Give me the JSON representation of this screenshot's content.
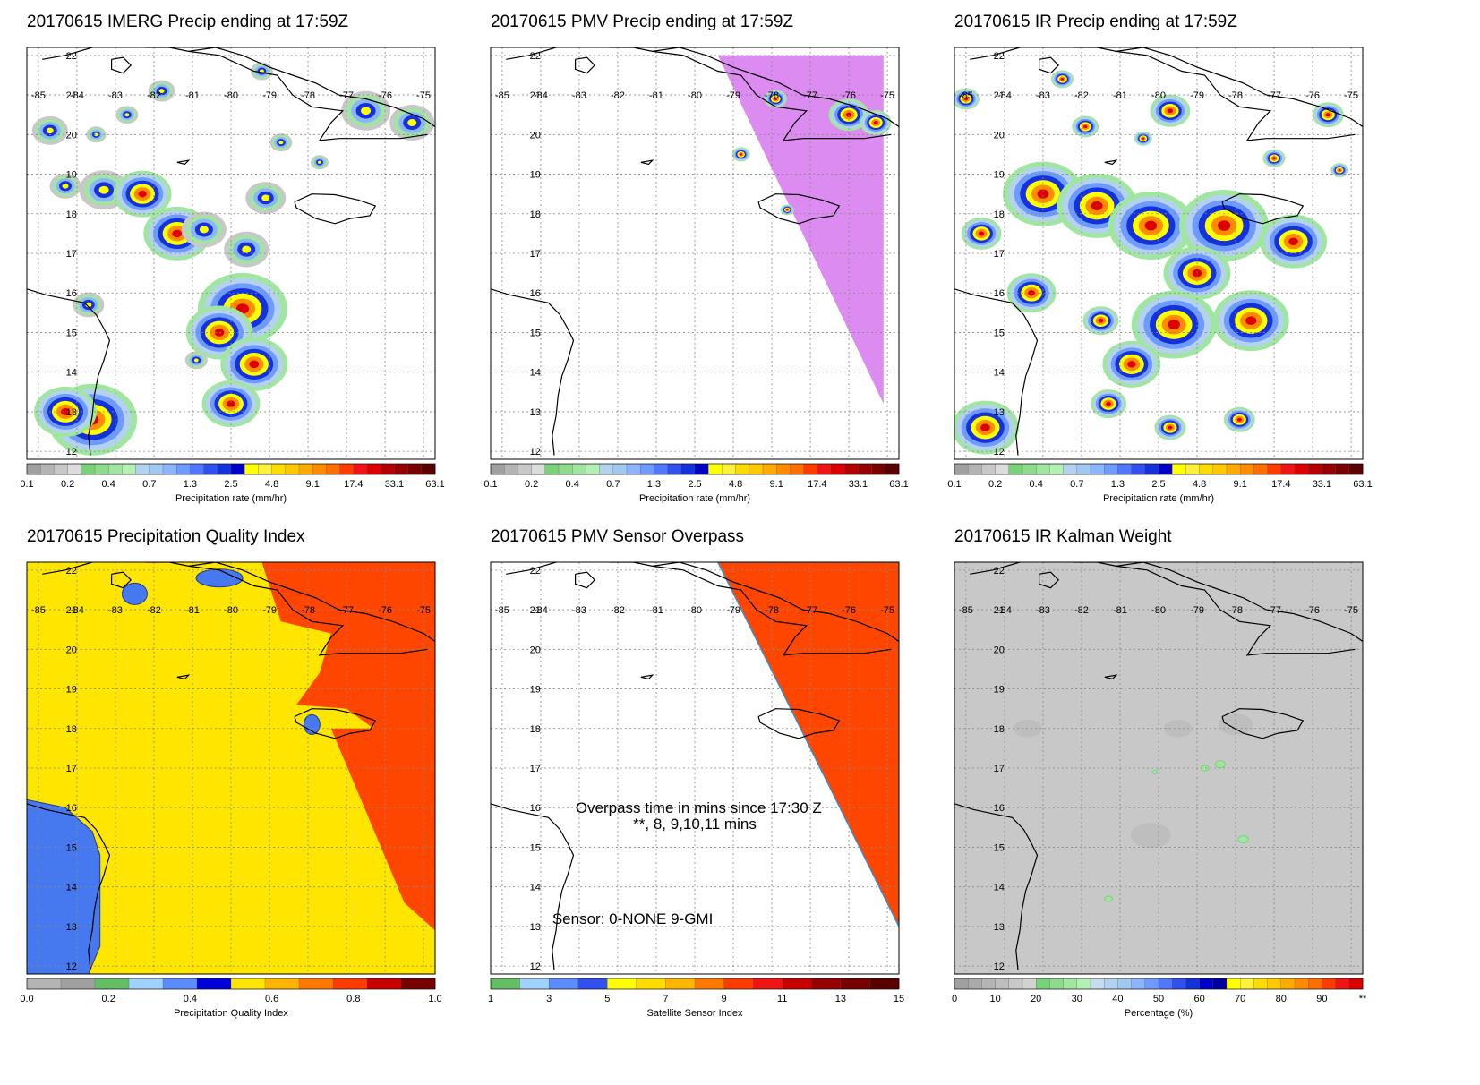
{
  "lon_labels": [
    "-85",
    "-84",
    "-83",
    "-82",
    "-81",
    "-80",
    "-79",
    "-78",
    "-77",
    "-76",
    "-75"
  ],
  "lat_labels": [
    "22",
    "21",
    "20",
    "19",
    "18",
    "17",
    "16",
    "15",
    "14",
    "13",
    "12"
  ],
  "panels": [
    {
      "id": "imerg",
      "title": "20170615 IMERG Precip ending at 17:59Z",
      "colorbar": {
        "tick_labels": [
          "0.1",
          "0.2",
          "0.4",
          "0.7",
          "1.3",
          "2.5",
          "4.8",
          "9.1",
          "17.4",
          "33.1",
          "63.1"
        ],
        "label": "Precipitation rate (mm/hr)",
        "colors": [
          "#a0a0a0",
          "#b4b4b4",
          "#c8c8c8",
          "#dcdcdc",
          "#78d278",
          "#8cdc8c",
          "#a0e6a0",
          "#b4f0b4",
          "#b4d2f0",
          "#a0c8f0",
          "#8cb4ff",
          "#6e9bff",
          "#5078ff",
          "#3250f0",
          "#1432dc",
          "#0000c8",
          "#ffff00",
          "#fff03c",
          "#ffdc00",
          "#ffc800",
          "#ffaa00",
          "#ff8c00",
          "#ff6e00",
          "#ff3c00",
          "#f01414",
          "#dc0000",
          "#b40000",
          "#960000",
          "#780000",
          "#5a0000"
        ]
      }
    },
    {
      "id": "pmv",
      "title": "20170615 PMV Precip ending at 17:59Z",
      "colorbar": {
        "tick_labels": [
          "0.1",
          "0.2",
          "0.4",
          "0.7",
          "1.3",
          "2.5",
          "4.8",
          "9.1",
          "17.4",
          "33.1",
          "63.1"
        ],
        "label": "Precipitation rate (mm/hr)",
        "colors": [
          "#a0a0a0",
          "#b4b4b4",
          "#c8c8c8",
          "#dcdcdc",
          "#78d278",
          "#8cdc8c",
          "#a0e6a0",
          "#b4f0b4",
          "#b4d2f0",
          "#a0c8f0",
          "#8cb4ff",
          "#6e9bff",
          "#5078ff",
          "#3250f0",
          "#1432dc",
          "#0000c8",
          "#ffff00",
          "#fff03c",
          "#ffdc00",
          "#ffc800",
          "#ffaa00",
          "#ff8c00",
          "#ff6e00",
          "#ff3c00",
          "#f01414",
          "#dc0000",
          "#b40000",
          "#960000",
          "#780000",
          "#5a0000"
        ]
      },
      "swath_color": "#dc8cf0"
    },
    {
      "id": "ir",
      "title": "20170615 IR Precip ending at 17:59Z",
      "colorbar": {
        "tick_labels": [
          "0.1",
          "0.2",
          "0.4",
          "0.7",
          "1.3",
          "2.5",
          "4.8",
          "9.1",
          "17.4",
          "33.1",
          "63.1"
        ],
        "label": "Precipitation rate (mm/hr)",
        "colors": [
          "#a0a0a0",
          "#b4b4b4",
          "#c8c8c8",
          "#dcdcdc",
          "#78d278",
          "#8cdc8c",
          "#a0e6a0",
          "#b4f0b4",
          "#b4d2f0",
          "#a0c8f0",
          "#8cb4ff",
          "#6e9bff",
          "#5078ff",
          "#3250f0",
          "#1432dc",
          "#0000c8",
          "#ffff00",
          "#fff03c",
          "#ffdc00",
          "#ffc800",
          "#ffaa00",
          "#ff8c00",
          "#ff6e00",
          "#ff3c00",
          "#f01414",
          "#dc0000",
          "#b40000",
          "#960000",
          "#780000",
          "#5a0000"
        ]
      }
    },
    {
      "id": "pqi",
      "title": "20170615 Precipitation Quality Index",
      "colorbar": {
        "tick_labels": [
          "0.0",
          "0.2",
          "0.4",
          "0.6",
          "0.8",
          "1.0"
        ],
        "label": "Precipitation Quality Index",
        "colors": [
          "#b4b4b4",
          "#a0a0a0",
          "#64be64",
          "#a0d2ff",
          "#5a8cff",
          "#0000dc",
          "#ffe600",
          "#ffb400",
          "#ff7800",
          "#ff3c00",
          "#c80000",
          "#780000"
        ]
      },
      "fill_colors": {
        "yellow": "#ffe600",
        "red": "#ff4600",
        "blue": "#4678f0"
      }
    },
    {
      "id": "sensor",
      "title": "20170615 PMV Sensor Overpass",
      "colorbar": {
        "tick_labels": [
          "1",
          "3",
          "5",
          "7",
          "9",
          "11",
          "13",
          "15"
        ],
        "label": "Satellite Sensor Index",
        "colors": [
          "#64be64",
          "#a0d2ff",
          "#5a8cff",
          "#3250f0",
          "#ffff00",
          "#ffdc00",
          "#ffb400",
          "#ff7800",
          "#ff3c00",
          "#f01414",
          "#c80000",
          "#960000",
          "#780000",
          "#5a0000"
        ]
      },
      "overlay": {
        "line1": "Overpass time in mins since 17:30 Z",
        "line2": "**, 8, 9,10,11 mins",
        "line3": "Sensor:   0-NONE  9-GMI"
      },
      "fill_color": "#ff4600"
    },
    {
      "id": "kalman",
      "title": "20170615 IR Kalman Weight",
      "colorbar": {
        "tick_labels": [
          "0",
          "10",
          "20",
          "30",
          "40",
          "50",
          "60",
          "70",
          "80",
          "90",
          "**"
        ],
        "label": "Percentage (%)",
        "colors": [
          "#a0a0a0",
          "#aaaaaa",
          "#b4b4b4",
          "#bebebe",
          "#c8c8c8",
          "#d2d2d2",
          "#78d278",
          "#8cdc8c",
          "#a0e6a0",
          "#b4f0b4",
          "#c8dcf0",
          "#b4d2f0",
          "#a0c8f0",
          "#8cb4ff",
          "#6e9bff",
          "#5078ff",
          "#3250f0",
          "#1432dc",
          "#0000c8",
          "#0000a0",
          "#ffff00",
          "#fff03c",
          "#ffdc00",
          "#ffc800",
          "#ffaa00",
          "#ff8c00",
          "#ff6e00",
          "#ff3c00",
          "#f01414",
          "#dc0000"
        ]
      },
      "fill_color": "#c8c8c8"
    }
  ]
}
